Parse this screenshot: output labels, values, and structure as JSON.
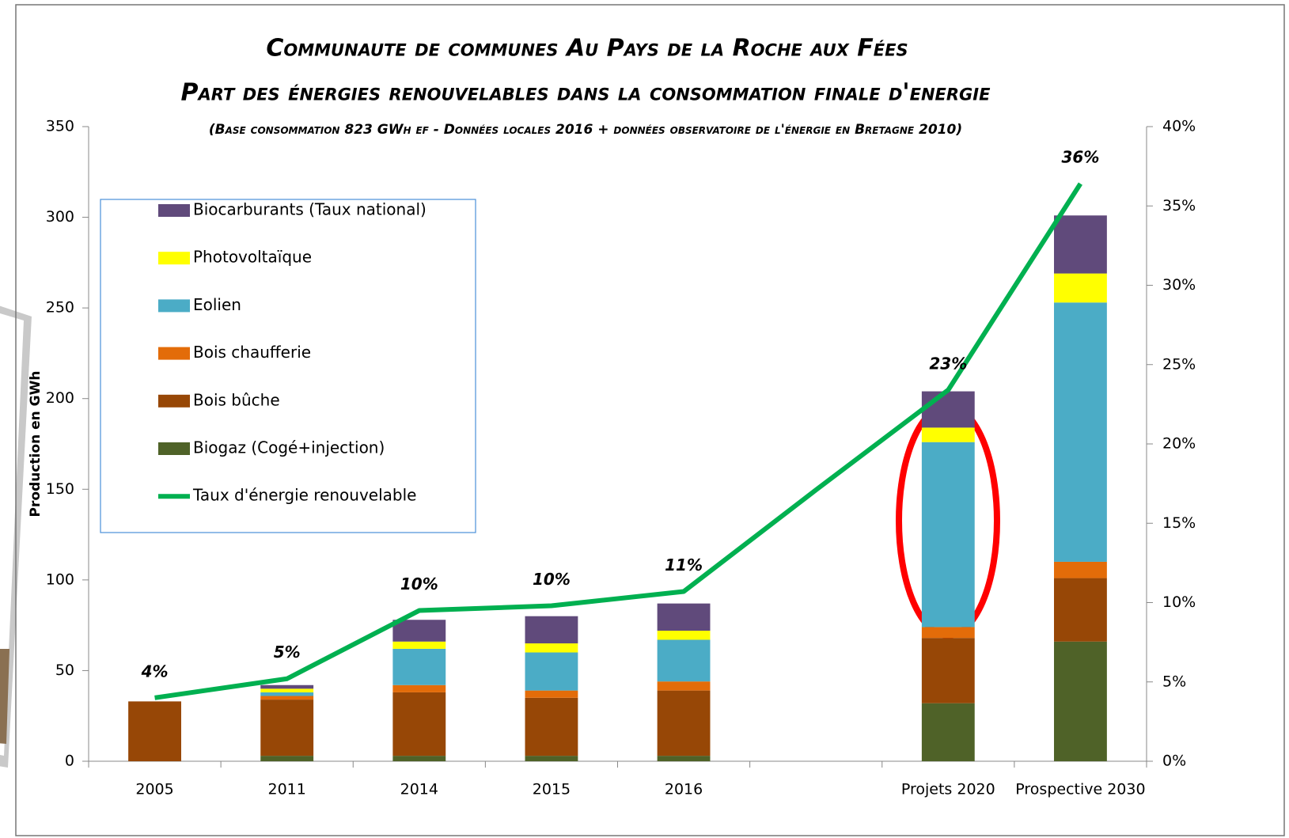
{
  "chart_data": {
    "type": "bar",
    "title": "Communaute de communes Au Pays de la Roche aux Fées",
    "subtitle": "Part des énergies renouvelables dans la consommation finale d'energie",
    "note": "(Base consommation 823 GWh ef - Données locales 2016 + données observatoire de l'énergie en Bretagne 2010)",
    "y_label": "Production en GWh",
    "categories": [
      "2005",
      "2011",
      "2014",
      "2015",
      "2016",
      null,
      "Projets 2020",
      "Prospective 2030"
    ],
    "stacked": true,
    "series": [
      {
        "name": "Biogaz (Cogé+injection)",
        "color": "#4f6228",
        "values": [
          0,
          3,
          3,
          3,
          3,
          null,
          32,
          66
        ]
      },
      {
        "name": "Bois bûche",
        "color": "#974706",
        "values": [
          33,
          31,
          35,
          32,
          36,
          null,
          36,
          35
        ]
      },
      {
        "name": "Bois chaufferie",
        "color": "#e36c09",
        "values": [
          0,
          2,
          4,
          4,
          5,
          null,
          6,
          9
        ]
      },
      {
        "name": "Eolien",
        "color": "#4bacc6",
        "values": [
          0,
          2,
          20,
          21,
          23,
          null,
          102,
          143
        ]
      },
      {
        "name": "Photovoltaïque",
        "color": "#ffff00",
        "values": [
          0,
          2,
          4,
          5,
          5,
          null,
          8,
          16
        ]
      },
      {
        "name": "Biocarburants (Taux national)",
        "color": "#604a7b",
        "values": [
          0,
          2,
          12,
          15,
          15,
          null,
          20,
          32
        ]
      },
      {
        "name": "Taux d'énergie renouvelable",
        "color": "#00b050",
        "type": "line",
        "axis": "y2",
        "values": [
          4.0,
          5.2,
          9.5,
          9.8,
          10.7,
          17.1,
          23.4,
          36.4
        ],
        "value_labels": [
          "4%",
          "5%",
          "10%",
          "10%",
          "11%",
          null,
          "23%",
          "36%"
        ]
      }
    ],
    "ylim": [
      0,
      350
    ],
    "yticks": [
      0,
      50,
      100,
      150,
      200,
      250,
      300,
      350
    ],
    "y2lim": [
      0,
      40
    ],
    "y2ticks": [
      {
        "value": 0,
        "label": "0%"
      },
      {
        "value": 5,
        "label": "5%"
      },
      {
        "value": 10,
        "label": "10%"
      },
      {
        "value": 15,
        "label": "15%"
      },
      {
        "value": 20,
        "label": "20%"
      },
      {
        "value": 25,
        "label": "25%"
      },
      {
        "value": 30,
        "label": "30%"
      },
      {
        "value": 35,
        "label": "35%"
      },
      {
        "value": 40,
        "label": "40%"
      }
    ],
    "legend": "upper left"
  }
}
